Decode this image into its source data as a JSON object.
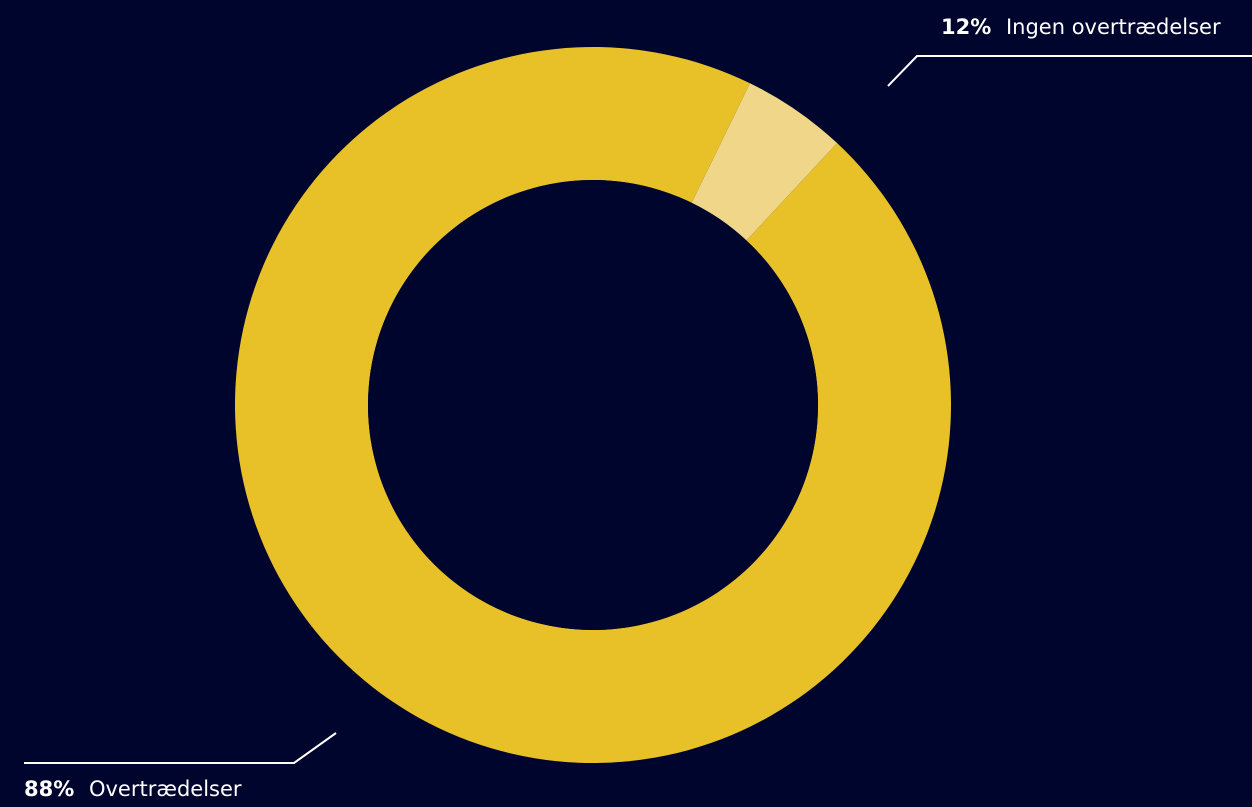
{
  "chart_data": {
    "type": "pie",
    "variant": "donut",
    "categories": [
      "Ingen overtrædelser",
      "Overtrædelser"
    ],
    "values": [
      12,
      88
    ],
    "labels": [
      {
        "percent": "12%",
        "name": "Ingen overtrædelser",
        "placement": "top-right"
      },
      {
        "percent": "88%",
        "name": "Overtrædelser",
        "placement": "bottom-left"
      }
    ],
    "colors": [
      "#f0d688",
      "#e8c128"
    ],
    "background": "#00052e",
    "leader_color": "#ffffff"
  }
}
